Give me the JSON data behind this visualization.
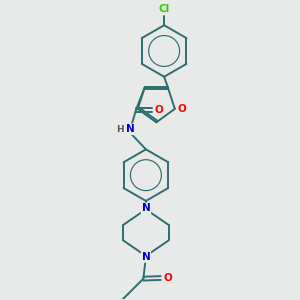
{
  "bg_color": "#e8eaea",
  "bond_color": "#2d6e6e",
  "atom_colors": {
    "O": "#ff0000",
    "N": "#0000cc",
    "Cl": "#33cc00",
    "H": "#555555",
    "C": "#2d6e6e"
  },
  "figsize": [
    3.0,
    3.0
  ],
  "dpi": 100,
  "xlim": [
    0,
    10
  ],
  "ylim": [
    0,
    10
  ]
}
